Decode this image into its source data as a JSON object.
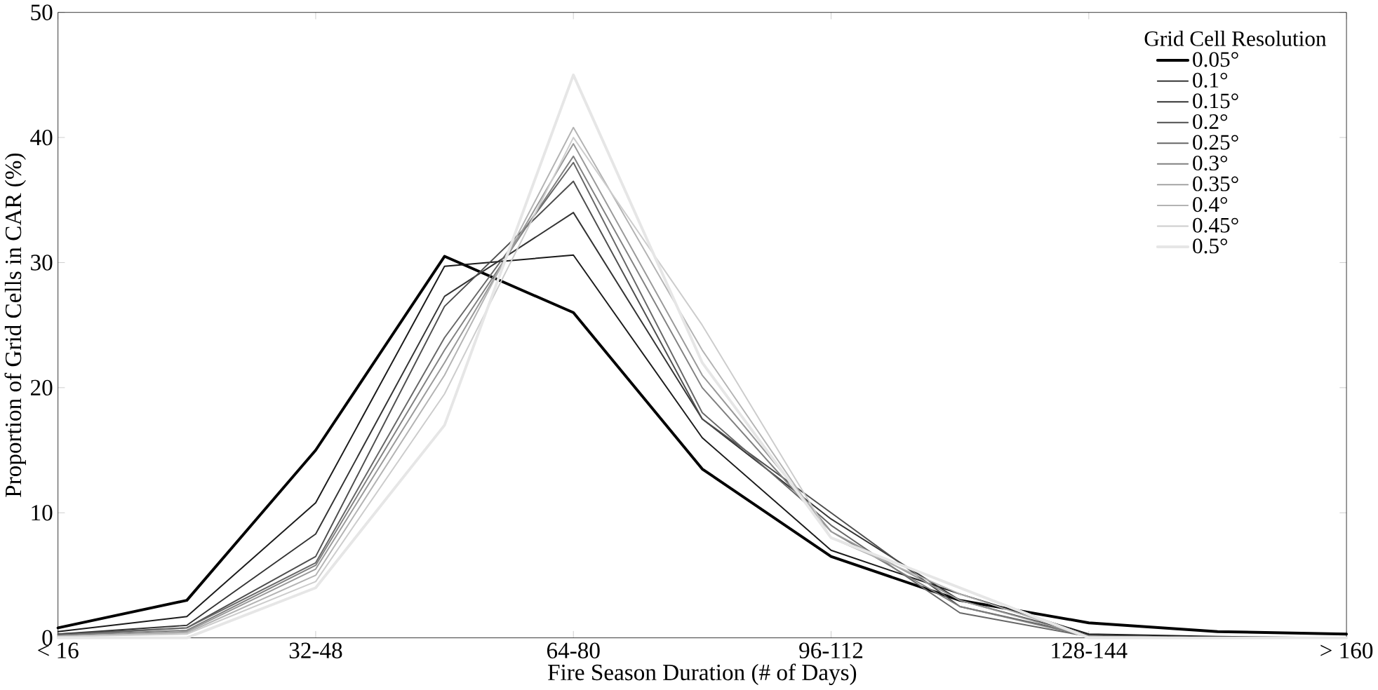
{
  "chart_data": {
    "type": "line",
    "xlabel": "Fire Season Duration (# of Days)",
    "ylabel": "Proportion of Grid Cells in CAR (%)",
    "legend_title": "Grid Cell Resolution",
    "legend": "top right",
    "categories": [
      "< 16",
      null,
      "32-48",
      null,
      "64-80",
      null,
      "96-112",
      null,
      "128-144",
      null,
      "> 160"
    ],
    "ylim": [
      0,
      50
    ],
    "yticks": [
      0,
      10,
      20,
      30,
      40,
      50
    ],
    "grid": false,
    "line_style": "solid",
    "series": [
      {
        "name": "0.05°",
        "color": "#000000",
        "values": [
          0.8,
          3,
          15,
          30.5,
          26,
          13.5,
          6.5,
          3,
          1.2,
          0.5,
          0.3
        ]
      },
      {
        "name": "0.1°",
        "color": "#1a1a1a",
        "values": [
          0.5,
          1.7,
          10.8,
          29.7,
          30.6,
          16,
          7,
          3.5,
          0.3,
          0.1,
          0
        ]
      },
      {
        "name": "0.15°",
        "color": "#333333",
        "values": [
          0.3,
          1.0,
          8.3,
          27.3,
          34,
          17.5,
          9.5,
          3,
          0.2,
          0,
          0
        ]
      },
      {
        "name": "0.2°",
        "color": "#4d4d4d",
        "values": [
          0.3,
          0.8,
          6.5,
          26.5,
          36.5,
          17.5,
          10,
          2.5,
          0.2,
          0,
          0
        ]
      },
      {
        "name": "0.25°",
        "color": "#666666",
        "values": [
          0.2,
          0.8,
          6,
          24,
          38,
          18,
          9,
          2,
          0.1,
          0,
          0
        ]
      },
      {
        "name": "0.3°",
        "color": "#808080",
        "values": [
          0.2,
          0.6,
          5.8,
          23,
          38.5,
          20,
          8.5,
          2.5,
          0.1,
          0,
          0
        ]
      },
      {
        "name": "0.35°",
        "color": "#999999",
        "values": [
          0.1,
          0.5,
          5.5,
          22,
          39.5,
          21,
          8.5,
          3,
          0.1,
          0,
          0
        ]
      },
      {
        "name": "0.4°",
        "color": "#b3b3b3",
        "values": [
          0.1,
          0.4,
          5,
          21,
          40.8,
          23,
          8,
          3.5,
          0.1,
          0,
          0
        ]
      },
      {
        "name": "0.45°",
        "color": "#cccccc",
        "values": [
          0.1,
          0.3,
          4.5,
          19.5,
          40,
          25,
          8,
          4,
          0.1,
          0,
          0
        ]
      },
      {
        "name": "0.5°",
        "color": "#e6e6e6",
        "values": [
          0,
          0,
          4,
          17,
          45,
          22,
          8,
          4,
          0,
          0,
          0
        ]
      }
    ]
  }
}
